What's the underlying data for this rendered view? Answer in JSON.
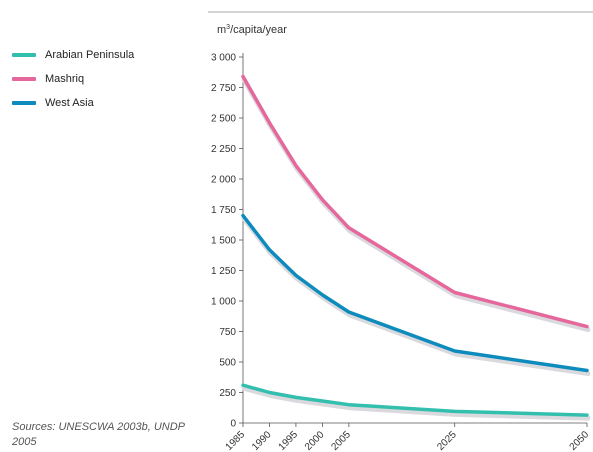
{
  "source_text": "Sources: UNESCWA 2003b, UNDP 2005",
  "chart_data": {
    "type": "line",
    "title": "",
    "xlabel": "",
    "ylabel": "m³/capita/year",
    "x": [
      1985,
      1990,
      1995,
      2000,
      2005,
      2025,
      2050
    ],
    "x_tick_labels": [
      "1985",
      "1990",
      "1995",
      "2000",
      "2005",
      "2025",
      "2050"
    ],
    "ylim": [
      0,
      3000
    ],
    "y_ticks": [
      0,
      250,
      500,
      750,
      1000,
      1250,
      1500,
      1750,
      2000,
      2250,
      2500,
      2750,
      3000
    ],
    "y_tick_labels": [
      "0",
      "250",
      "500",
      "750",
      "1 000",
      "1 250",
      "1 500",
      "1 750",
      "2 000",
      "2 250",
      "2 500",
      "2 750",
      "3 000"
    ],
    "grid": false,
    "legend_position": "left",
    "series": [
      {
        "name": "Arabian Peninsula",
        "color": "#33bfae",
        "values": [
          310,
          250,
          210,
          180,
          150,
          95,
          65
        ]
      },
      {
        "name": "Mashriq",
        "color": "#e5679c",
        "values": [
          2840,
          2460,
          2110,
          1830,
          1600,
          1070,
          790
        ]
      },
      {
        "name": "West Asia",
        "color": "#0d8bbd",
        "values": [
          1700,
          1420,
          1210,
          1050,
          910,
          590,
          430
        ]
      }
    ]
  }
}
